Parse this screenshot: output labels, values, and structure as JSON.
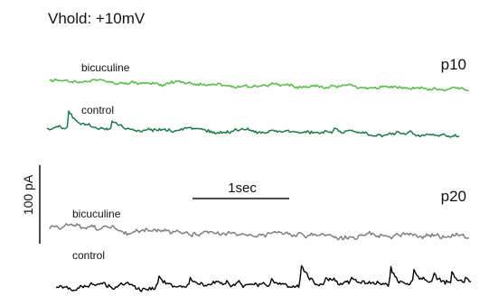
{
  "figure": {
    "header": "Vhold: +10mV",
    "panels": [
      {
        "age": "p10",
        "traces": [
          {
            "label": "bicuculine",
            "color": "#5dbb4f"
          },
          {
            "label": "control",
            "color": "#1e7a45"
          }
        ]
      },
      {
        "age": "p20",
        "traces": [
          {
            "label": "bicuculine",
            "color": "#808080"
          },
          {
            "label": "control",
            "color": "#000000"
          }
        ]
      }
    ],
    "scalebar": {
      "time_label": "1sec",
      "amplitude_label": "100 pA"
    }
  }
}
